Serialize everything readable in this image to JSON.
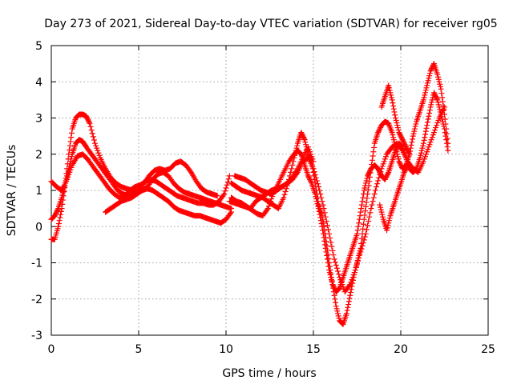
{
  "chart_data": {
    "type": "scatter",
    "title": "Day 273 of 2021, Sidereal Day-to-day VTEC variation (SDTVAR) for receiver rg05",
    "xlabel": "GPS time / hours",
    "ylabel": "SDTVAR / TECUs",
    "xlim": [
      0,
      25
    ],
    "ylim": [
      -3,
      5
    ],
    "xticks": [
      "0",
      "5",
      "10",
      "15",
      "20",
      "25"
    ],
    "yticks": [
      "-3",
      "-2",
      "-1",
      "0",
      "1",
      "2",
      "3",
      "4",
      "5"
    ],
    "grid": true,
    "marker": "+",
    "marker_color": "#ff0000",
    "series": [
      {
        "name": "s1",
        "x": [
          0.0,
          0.2,
          0.4,
          0.6,
          0.8,
          1.0,
          1.2,
          1.4,
          1.6,
          1.8,
          2.0,
          2.2,
          2.5,
          2.8,
          3.1,
          3.4,
          3.7,
          4.0,
          4.3,
          4.6,
          4.9,
          5.2,
          5.5,
          5.8,
          6.1,
          6.4,
          6.7,
          7.0,
          7.3,
          7.6,
          7.9,
          8.2,
          8.5,
          8.8,
          9.1,
          9.4,
          9.7,
          10.0,
          10.3
        ],
        "y": [
          -0.35,
          -0.35,
          0.0,
          0.5,
          1.2,
          2.0,
          2.7,
          3.0,
          3.1,
          3.1,
          3.05,
          2.85,
          2.3,
          1.9,
          1.6,
          1.35,
          1.2,
          1.1,
          1.05,
          1.0,
          0.95,
          1.0,
          1.1,
          1.3,
          1.45,
          1.5,
          1.4,
          1.2,
          1.05,
          0.95,
          0.9,
          0.85,
          0.8,
          0.75,
          0.7,
          0.65,
          0.6,
          0.55,
          0.5
        ]
      },
      {
        "name": "s2",
        "x": [
          0.0,
          0.2,
          0.4,
          0.6,
          0.8,
          1.0,
          1.2,
          1.4,
          1.6,
          1.8,
          2.0,
          2.3,
          2.6,
          2.9,
          3.2,
          3.5,
          3.8,
          4.1,
          4.4,
          4.7,
          5.0,
          5.3,
          5.6,
          5.9,
          6.2,
          6.5,
          6.8,
          7.1,
          7.4,
          7.7,
          8.0,
          8.3,
          8.6,
          8.9,
          9.2,
          9.5
        ],
        "y": [
          0.2,
          0.3,
          0.5,
          0.8,
          1.2,
          1.6,
          2.0,
          2.3,
          2.4,
          2.35,
          2.2,
          2.0,
          1.8,
          1.6,
          1.4,
          1.2,
          1.0,
          0.9,
          0.85,
          0.9,
          1.0,
          1.2,
          1.4,
          1.55,
          1.6,
          1.55,
          1.6,
          1.75,
          1.8,
          1.7,
          1.5,
          1.25,
          1.05,
          0.95,
          0.9,
          0.85
        ]
      },
      {
        "name": "s3",
        "x": [
          0.0,
          0.3,
          0.6,
          0.9,
          1.2,
          1.5,
          1.8,
          2.1,
          2.4,
          2.7,
          3.0,
          3.3,
          3.6,
          3.9,
          4.2,
          4.5,
          4.8,
          5.1,
          5.4,
          5.7,
          6.0,
          6.3,
          6.6,
          6.9,
          7.2,
          7.5,
          7.8,
          8.1,
          8.4,
          8.7,
          9.0,
          9.3,
          9.6,
          9.9,
          10.2
        ],
        "y": [
          1.25,
          1.1,
          1.0,
          1.3,
          1.7,
          1.95,
          2.0,
          1.85,
          1.65,
          1.45,
          1.25,
          1.05,
          0.9,
          0.8,
          0.85,
          1.0,
          1.1,
          1.15,
          1.25,
          1.3,
          1.25,
          1.15,
          1.05,
          0.95,
          0.85,
          0.8,
          0.75,
          0.7,
          0.65,
          0.65,
          0.6,
          0.6,
          0.7,
          0.9,
          1.4
        ]
      },
      {
        "name": "s4",
        "x": [
          3.1,
          3.4,
          3.7,
          4.0,
          4.3,
          4.6,
          4.9,
          5.2,
          5.5,
          5.8,
          6.1,
          6.4,
          6.7,
          7.0,
          7.3,
          7.6,
          7.9,
          8.2,
          8.5,
          8.8,
          9.1,
          9.4,
          9.7,
          10.0,
          10.3
        ],
        "y": [
          0.4,
          0.5,
          0.6,
          0.7,
          0.75,
          0.8,
          0.9,
          1.0,
          1.05,
          1.0,
          0.9,
          0.8,
          0.7,
          0.55,
          0.45,
          0.4,
          0.35,
          0.3,
          0.3,
          0.25,
          0.2,
          0.15,
          0.1,
          0.2,
          0.4
        ]
      },
      {
        "name": "s5",
        "x": [
          10.3,
          10.6,
          10.9,
          11.2,
          11.5,
          11.8,
          12.1,
          12.4,
          12.7,
          13.0,
          13.3,
          13.6,
          13.9,
          14.1,
          14.3,
          14.5,
          14.7,
          14.9,
          15.1,
          15.3,
          15.5,
          15.7,
          15.9,
          16.1,
          16.3,
          16.5,
          16.7,
          16.9,
          17.1,
          17.3,
          17.5,
          17.7,
          17.9,
          18.1,
          18.3,
          18.5,
          18.7,
          18.9,
          19.1,
          19.3,
          19.5,
          19.7,
          19.9,
          20.1,
          20.3,
          20.5,
          20.7,
          20.9,
          21.1,
          21.3,
          21.5,
          21.7,
          21.9,
          22.1,
          22.3,
          22.5,
          22.7
        ],
        "y": [
          1.2,
          1.1,
          1.0,
          0.95,
          0.9,
          0.85,
          0.8,
          0.7,
          0.6,
          0.5,
          0.8,
          1.3,
          1.9,
          2.3,
          2.6,
          2.4,
          2.0,
          1.8,
          1.2,
          0.6,
          0.3,
          -0.3,
          -1.0,
          -1.6,
          -2.2,
          -2.6,
          -2.7,
          -2.4,
          -1.9,
          -1.4,
          -1.0,
          -0.6,
          0.2,
          0.9,
          1.6,
          2.3,
          2.6,
          2.8,
          2.9,
          2.85,
          2.6,
          2.2,
          1.8,
          1.6,
          1.7,
          2.0,
          2.5,
          2.9,
          3.2,
          3.5,
          3.9,
          4.3,
          4.5,
          4.2,
          3.8,
          3.1,
          2.3
        ]
      },
      {
        "name": "s6",
        "x": [
          10.3,
          10.6,
          10.9,
          11.2,
          11.5,
          11.8,
          12.1,
          12.4,
          12.7,
          13.0,
          13.3,
          13.6,
          13.9,
          14.1,
          14.3,
          14.5,
          14.7,
          14.9,
          15.1,
          15.3,
          15.5,
          15.7,
          15.9,
          16.1,
          16.3,
          16.5,
          16.7,
          16.9,
          17.1,
          17.3,
          17.5,
          17.7,
          17.9,
          18.1,
          18.3,
          18.5,
          18.7,
          18.9,
          19.1,
          19.3,
          19.5,
          19.7,
          19.9,
          20.1,
          20.3,
          20.5,
          20.7,
          20.9,
          21.1,
          21.3,
          21.5,
          21.7,
          21.9,
          22.1,
          22.3,
          22.5,
          22.7
        ],
        "y": [
          0.8,
          0.7,
          0.65,
          0.55,
          0.45,
          0.35,
          0.3,
          0.5,
          0.9,
          1.2,
          1.5,
          1.8,
          2.0,
          2.1,
          2.0,
          1.7,
          1.4,
          1.2,
          0.9,
          0.5,
          0.0,
          -0.6,
          -1.2,
          -1.6,
          -1.8,
          -1.7,
          -1.4,
          -1.1,
          -0.8,
          -0.5,
          -0.2,
          0.4,
          1.0,
          1.4,
          1.6,
          1.7,
          1.6,
          1.4,
          1.3,
          1.5,
          1.8,
          2.1,
          2.3,
          2.2,
          1.9,
          1.6,
          1.5,
          1.6,
          1.9,
          2.3,
          2.8,
          3.3,
          3.7,
          3.5,
          3.1,
          2.7,
          2.1
        ]
      },
      {
        "name": "s7",
        "x": [
          10.5,
          10.8,
          11.1,
          11.4,
          11.7,
          12.0,
          12.3,
          12.6,
          12.9,
          13.2,
          13.5,
          13.8,
          14.1,
          14.4,
          14.7,
          15.0,
          15.3,
          15.6,
          15.9,
          16.2,
          16.5,
          16.8,
          17.1,
          17.4,
          17.7,
          18.0,
          18.3,
          18.6,
          18.9,
          19.2,
          19.5,
          19.8,
          20.1,
          20.4,
          20.7,
          21.0,
          21.3,
          21.6,
          21.9,
          22.2,
          22.5
        ],
        "y": [
          1.4,
          1.35,
          1.3,
          1.2,
          1.1,
          1.0,
          0.95,
          0.9,
          1.0,
          1.1,
          1.2,
          1.3,
          1.5,
          1.8,
          1.9,
          1.6,
          1.1,
          0.5,
          -0.2,
          -0.9,
          -1.4,
          -1.8,
          -1.6,
          -1.2,
          -0.7,
          -0.2,
          0.5,
          1.1,
          1.6,
          2.0,
          2.2,
          2.3,
          2.1,
          1.8,
          1.6,
          1.5,
          1.8,
          2.2,
          2.6,
          3.0,
          3.3
        ]
      },
      {
        "name": "s8",
        "x": [
          18.9,
          19.1,
          19.3,
          19.5,
          19.7,
          19.9,
          20.1,
          20.3,
          20.5
        ],
        "y": [
          3.3,
          3.6,
          3.9,
          3.5,
          3.0,
          2.6,
          2.4,
          2.2,
          2.0
        ]
      },
      {
        "name": "s9",
        "x": [
          18.8,
          19.0,
          19.2,
          19.4,
          19.6,
          19.8,
          20.0,
          20.2,
          20.4
        ],
        "y": [
          0.6,
          0.2,
          -0.1,
          0.3,
          0.6,
          0.9,
          1.2,
          1.5,
          1.7
        ]
      },
      {
        "name": "s10",
        "x": [
          10.2,
          10.5,
          10.8,
          11.1,
          11.4,
          11.7,
          12.0,
          12.3,
          12.6,
          12.9,
          13.2,
          13.5,
          13.8,
          14.1,
          14.4,
          14.7,
          15.0
        ],
        "y": [
          0.7,
          0.65,
          0.6,
          0.55,
          0.5,
          0.7,
          0.8,
          0.9,
          1.0,
          1.05,
          1.1,
          1.2,
          1.35,
          1.6,
          1.9,
          2.2,
          1.8
        ]
      }
    ]
  }
}
